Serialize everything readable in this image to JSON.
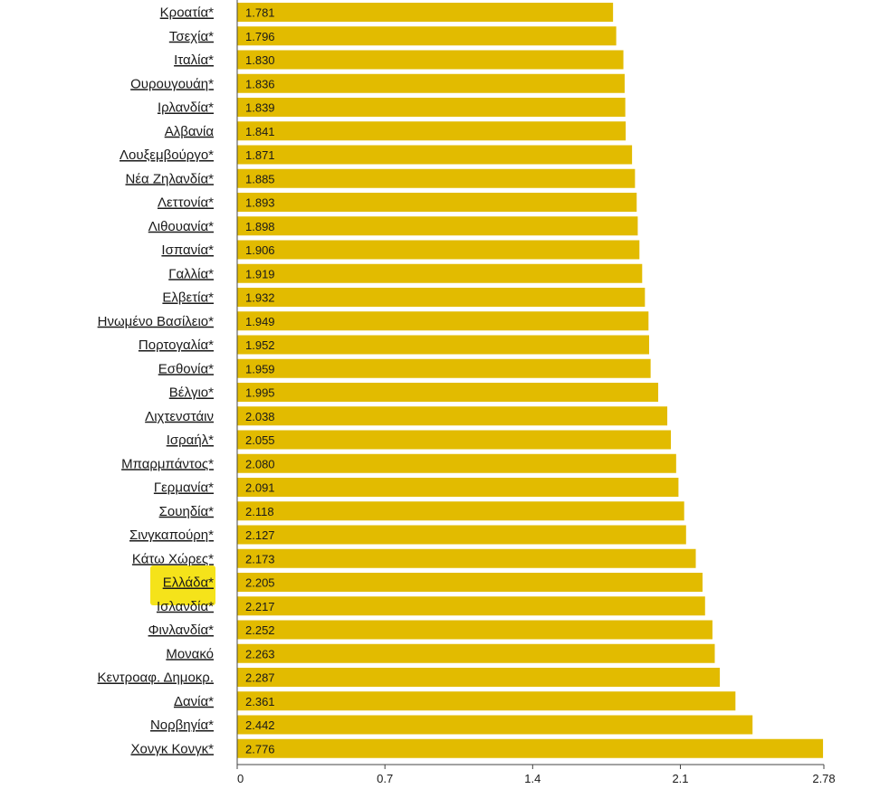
{
  "chart_data": {
    "type": "bar",
    "orientation": "horizontal",
    "title": "",
    "xlabel": "",
    "ylabel": "",
    "xlim": [
      0,
      2.78
    ],
    "x_ticks": [
      "0",
      "0.7",
      "1.4",
      "2.1",
      "2.78"
    ],
    "x_tick_values": [
      0,
      0.7,
      1.4,
      2.1,
      2.78
    ],
    "bar_color": "#e2bb00",
    "highlight_color": "#f5e31a",
    "highlight_category": "Ελλάδα*",
    "categories": [
      "Κροατία*",
      "Τσεχία*",
      "Ιταλία*",
      "Ουρουγουάη*",
      "Ιρλανδία*",
      "Αλβανία",
      "Λουξεμβούργο*",
      "Νέα Ζηλανδία*",
      "Λεττονία*",
      "Λιθουανία*",
      "Ισπανία*",
      "Γαλλία*",
      "Ελβετία*",
      "Ηνωμένο Βασίλειο*",
      "Πορτογαλία*",
      "Εσθονία*",
      "Βέλγιο*",
      "Λιχτενστάιν",
      "Ισραήλ*",
      "Μπαρμπάντος*",
      "Γερμανία*",
      "Σουηδία*",
      "Σινγκαπούρη*",
      "Κάτω Χώρες*",
      "Ελλάδα*",
      "Ισλανδία*",
      "Φινλανδία*",
      "Μονακό",
      "Κεντροαφ. Δημοκρ.",
      "Δανία*",
      "Νορβηγία*",
      "Χονγκ Κονγκ*"
    ],
    "values": [
      1.781,
      1.796,
      1.83,
      1.836,
      1.839,
      1.841,
      1.871,
      1.885,
      1.893,
      1.898,
      1.906,
      1.919,
      1.932,
      1.949,
      1.952,
      1.959,
      1.995,
      2.038,
      2.055,
      2.08,
      2.091,
      2.118,
      2.127,
      2.173,
      2.205,
      2.217,
      2.252,
      2.263,
      2.287,
      2.361,
      2.442,
      2.776
    ],
    "value_labels": [
      "1.781",
      "1.796",
      "1.830",
      "1.836",
      "1.839",
      "1.841",
      "1.871",
      "1.885",
      "1.893",
      "1.898",
      "1.906",
      "1.919",
      "1.932",
      "1.949",
      "1.952",
      "1.959",
      "1.995",
      "2.038",
      "2.055",
      "2.080",
      "2.091",
      "2.118",
      "2.127",
      "2.173",
      "2.205",
      "2.217",
      "2.252",
      "2.263",
      "2.287",
      "2.361",
      "2.442",
      "2.776"
    ]
  }
}
